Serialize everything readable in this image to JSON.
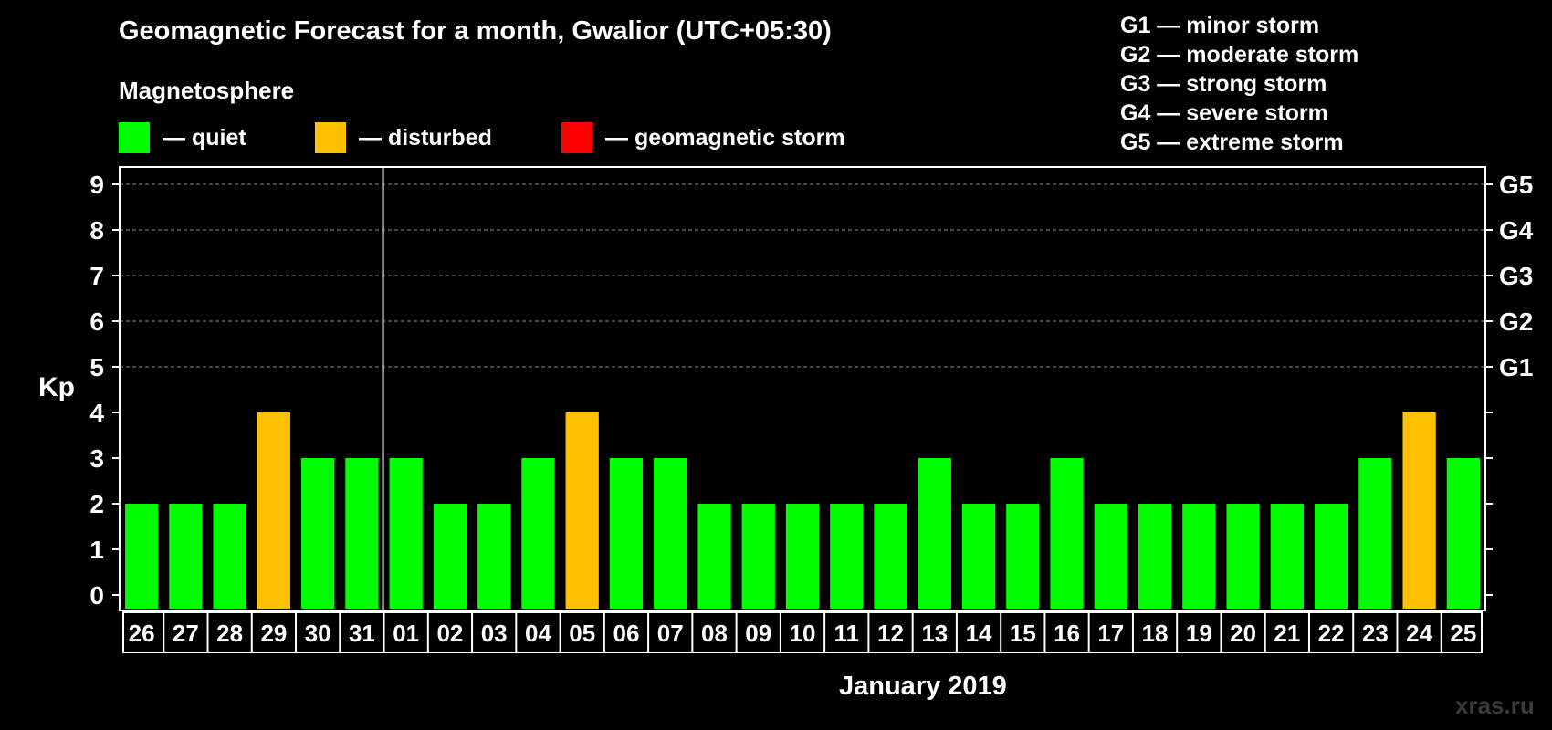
{
  "chart_data": {
    "type": "bar",
    "title": "Geomagnetic Forecast for a month, Gwalior (UTC+05:30)",
    "subtitle": "Magnetosphere",
    "ylabel": "Kp",
    "xlabel": "January 2019",
    "ylim": [
      0,
      9
    ],
    "yticks": [
      "0",
      "1",
      "2",
      "3",
      "4",
      "5",
      "6",
      "7",
      "8",
      "9"
    ],
    "storm_ticks": [
      {
        "kp": 5,
        "label": "G1"
      },
      {
        "kp": 6,
        "label": "G2"
      },
      {
        "kp": 7,
        "label": "G3"
      },
      {
        "kp": 8,
        "label": "G4"
      },
      {
        "kp": 9,
        "label": "G5"
      }
    ],
    "categories": [
      "26",
      "27",
      "28",
      "29",
      "30",
      "31",
      "01",
      "02",
      "03",
      "04",
      "05",
      "06",
      "07",
      "08",
      "09",
      "10",
      "11",
      "12",
      "13",
      "14",
      "15",
      "16",
      "17",
      "18",
      "19",
      "20",
      "21",
      "22",
      "23",
      "24",
      "25"
    ],
    "values": [
      2,
      2,
      2,
      4,
      3,
      3,
      3,
      2,
      2,
      3,
      4,
      3,
      3,
      2,
      2,
      2,
      2,
      2,
      3,
      2,
      2,
      3,
      2,
      2,
      2,
      2,
      2,
      2,
      3,
      4,
      3
    ],
    "month_divider_after_index": 5,
    "legend": [
      {
        "label": "— quiet",
        "color": "#00ff00"
      },
      {
        "label": "— disturbed",
        "color": "#ffc000"
      },
      {
        "label": "— geomagnetic storm",
        "color": "#ff0000"
      }
    ],
    "storm_scale": [
      "G1 — minor storm",
      "G2 — moderate storm",
      "G3 — strong storm",
      "G4 — severe storm",
      "G5 — extreme storm"
    ]
  },
  "watermark": "xras.ru"
}
